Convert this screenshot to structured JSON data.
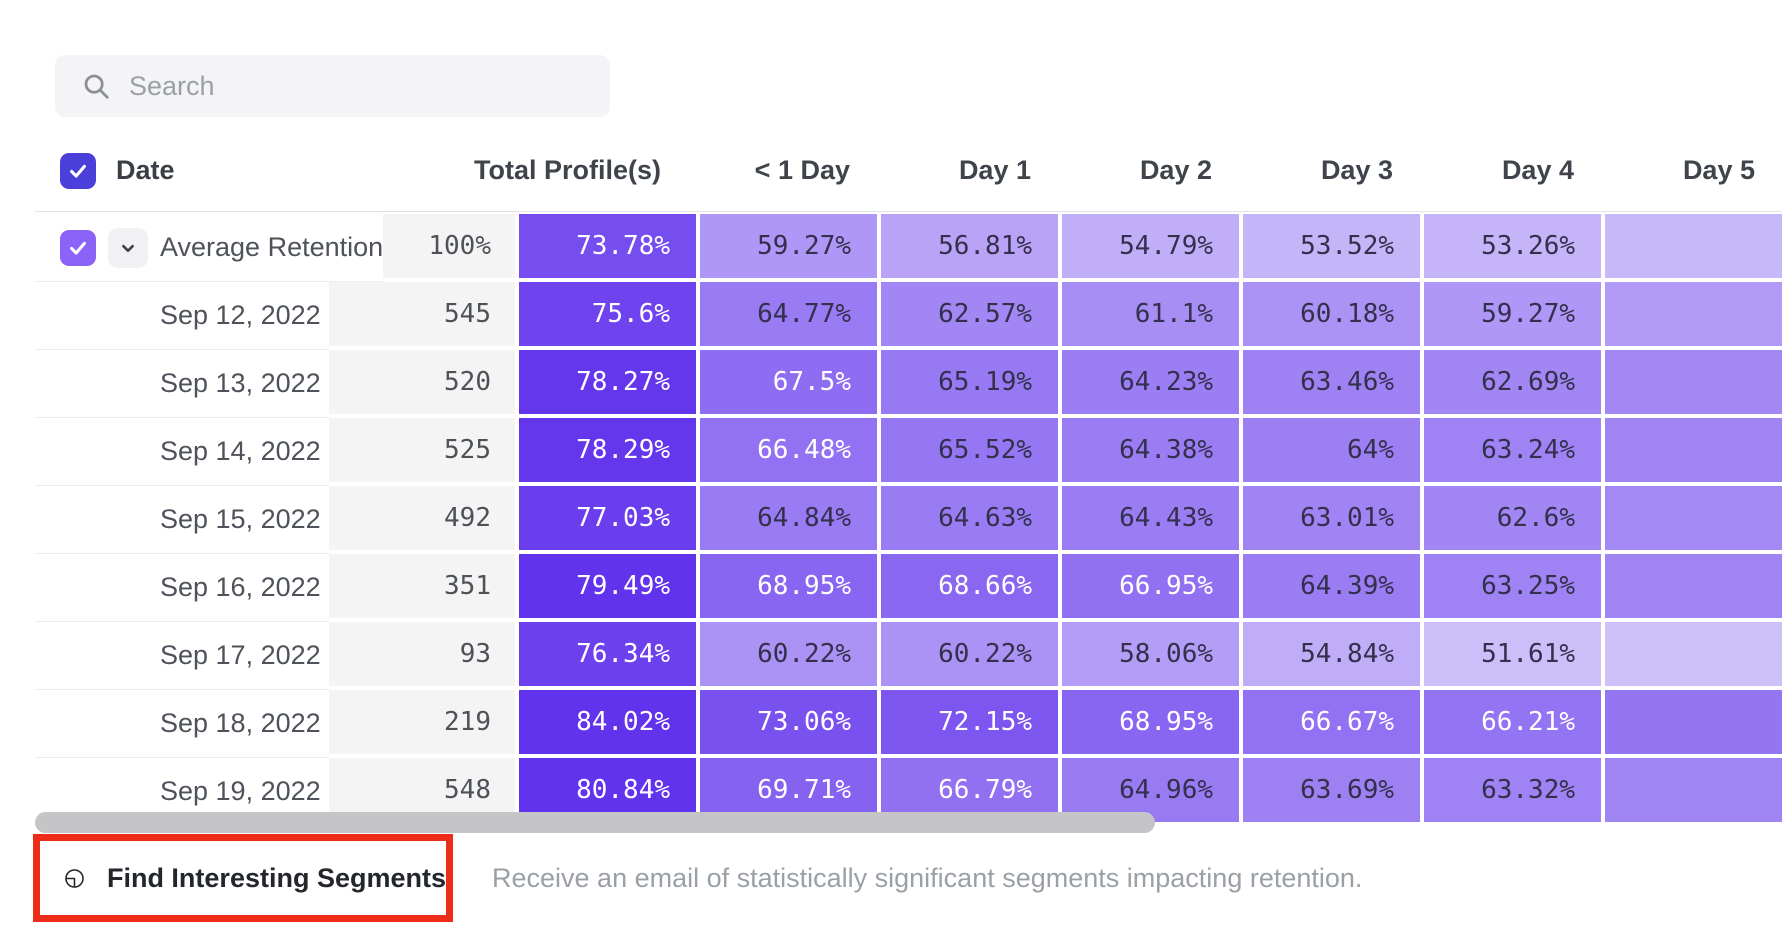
{
  "search": {
    "placeholder": "Search"
  },
  "table": {
    "columns": [
      "Date",
      "Total Profile(s)",
      "< 1 Day",
      "Day 1",
      "Day 2",
      "Day 3",
      "Day 4",
      "Day 5"
    ],
    "rows": [
      {
        "label": "Average Retention",
        "is_average": true,
        "profiles": "100%",
        "values": [
          73.78,
          59.27,
          56.81,
          54.79,
          53.52,
          53.26
        ]
      },
      {
        "label": "Sep 12, 2022",
        "is_average": false,
        "profiles": "545",
        "values": [
          75.6,
          64.77,
          62.57,
          61.1,
          60.18,
          59.27
        ]
      },
      {
        "label": "Sep 13, 2022",
        "is_average": false,
        "profiles": "520",
        "values": [
          78.27,
          67.5,
          65.19,
          64.23,
          63.46,
          62.69
        ]
      },
      {
        "label": "Sep 14, 2022",
        "is_average": false,
        "profiles": "525",
        "values": [
          78.29,
          66.48,
          65.52,
          64.38,
          64,
          63.24
        ]
      },
      {
        "label": "Sep 15, 2022",
        "is_average": false,
        "profiles": "492",
        "values": [
          77.03,
          64.84,
          64.63,
          64.43,
          63.01,
          62.6
        ]
      },
      {
        "label": "Sep 16, 2022",
        "is_average": false,
        "profiles": "351",
        "values": [
          79.49,
          68.95,
          68.66,
          66.95,
          64.39,
          63.25
        ]
      },
      {
        "label": "Sep 17, 2022",
        "is_average": false,
        "profiles": "93",
        "values": [
          76.34,
          60.22,
          60.22,
          58.06,
          54.84,
          51.61
        ]
      },
      {
        "label": "Sep 18, 2022",
        "is_average": false,
        "profiles": "219",
        "values": [
          84.02,
          73.06,
          72.15,
          68.95,
          66.67,
          66.21
        ]
      },
      {
        "label": "Sep 19, 2022",
        "is_average": false,
        "profiles": "548",
        "values": [
          80.84,
          69.71,
          66.79,
          64.96,
          63.69,
          63.32
        ]
      }
    ]
  },
  "footer": {
    "button_label": "Find Interesting Segments",
    "description": "Receive an email of statistically significant segments impacting retention."
  },
  "colors": {
    "checkbox_header": "#4b3fd9",
    "checkbox_row": "#8a63f9",
    "scale_light": "#d2c6fa",
    "scale_dark": "#6233ec",
    "scale_domain": [
      50,
      79
    ],
    "white_text_threshold": 66,
    "cell_dark_text": "#33304d",
    "annotation_red": "#ee2c1a"
  }
}
